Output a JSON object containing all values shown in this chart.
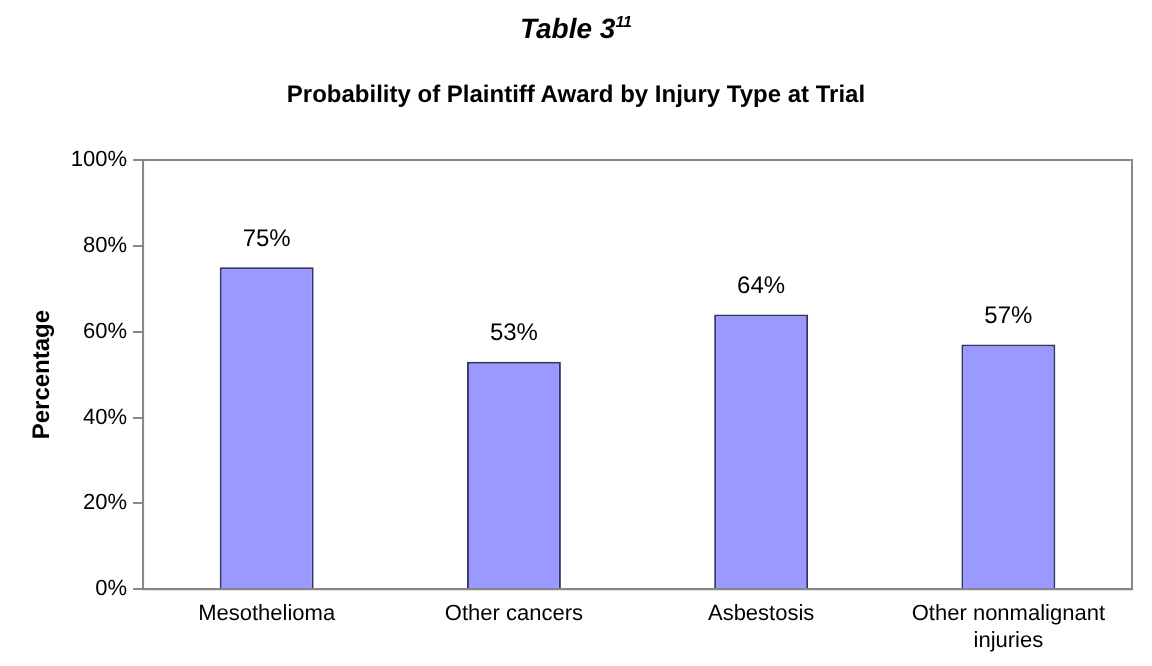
{
  "chart_data": {
    "type": "bar",
    "title": "Table 3$^{11}$",
    "subtitle": "Probability of Plaintiff Award by Injury Type at Trial",
    "ylabel": "Percentage",
    "categories": [
      "Mesothelioma",
      "Other cancers",
      "Asbestosis",
      "Other nonmalignant injuries"
    ],
    "values": [
      75,
      53,
      64,
      57
    ],
    "value_labels": [
      "75%",
      "53%",
      "64%",
      "57%"
    ],
    "color": "#9999ff",
    "ylim": [
      0,
      100
    ],
    "yticks": [
      {
        "value": 0,
        "label": "0%"
      },
      {
        "value": 20,
        "label": "20%"
      },
      {
        "value": 40,
        "label": "40%"
      },
      {
        "value": 60,
        "label": "60%"
      },
      {
        "value": 80,
        "label": "80%"
      },
      {
        "value": 100,
        "label": "100%"
      }
    ],
    "grid": false,
    "legend": false
  }
}
